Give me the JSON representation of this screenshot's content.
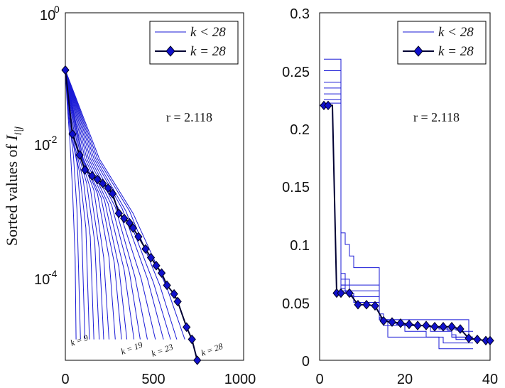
{
  "chart_data": [
    {
      "type": "line",
      "yscale": "log",
      "xlim": [
        0,
        1000
      ],
      "ylim_exponents": [
        -5,
        0
      ],
      "xticks": [
        "0",
        "500",
        "1000"
      ],
      "ytick_base": "10",
      "ytick_exponents": [
        "0",
        "-2",
        "-4"
      ],
      "ylabel": "Sorted values of ",
      "ylabel_math": "I",
      "ylabel_sub": "i|j",
      "annotation": "r = 2.118",
      "legend": {
        "thin": "k < 28",
        "main": "k = 28",
        "placement": "top-right"
      },
      "k_labels": [
        "k = 9",
        "k = 19",
        "k = 23",
        "k = 28"
      ],
      "thin_series": [
        {
          "k": 9,
          "end": 60,
          "x": [
            0,
            10,
            25,
            40,
            55,
            60
          ],
          "y": [
            0.15,
            0.05,
            0.015,
            0.003,
            0.0003,
            2e-05
          ]
        },
        {
          "k": 10,
          "end": 85,
          "x": [
            0,
            20,
            45,
            65,
            85
          ],
          "y": [
            0.15,
            0.03,
            0.009,
            0.0015,
            2e-05
          ]
        },
        {
          "k": 11,
          "end": 110,
          "x": [
            0,
            30,
            65,
            90,
            110
          ],
          "y": [
            0.15,
            0.02,
            0.007,
            0.001,
            2e-05
          ]
        },
        {
          "k": 12,
          "end": 135,
          "x": [
            0,
            40,
            80,
            115,
            135
          ],
          "y": [
            0.15,
            0.015,
            0.005,
            0.0008,
            2e-05
          ]
        },
        {
          "k": 13,
          "end": 160,
          "x": [
            0,
            50,
            100,
            140,
            160
          ],
          "y": [
            0.15,
            0.013,
            0.004,
            0.0006,
            2e-05
          ]
        },
        {
          "k": 14,
          "end": 190,
          "x": [
            0,
            60,
            120,
            165,
            190
          ],
          "y": [
            0.15,
            0.012,
            0.0035,
            0.0005,
            2e-05
          ]
        },
        {
          "k": 15,
          "end": 215,
          "x": [
            0,
            70,
            140,
            190,
            215
          ],
          "y": [
            0.15,
            0.011,
            0.003,
            0.0004,
            2e-05
          ]
        },
        {
          "k": 16,
          "end": 245,
          "x": [
            0,
            80,
            160,
            215,
            245
          ],
          "y": [
            0.15,
            0.01,
            0.0028,
            0.0003,
            2e-05
          ]
        },
        {
          "k": 17,
          "end": 280,
          "x": [
            0,
            90,
            180,
            245,
            280
          ],
          "y": [
            0.15,
            0.009,
            0.0025,
            0.0003,
            2e-05
          ]
        },
        {
          "k": 18,
          "end": 315,
          "x": [
            0,
            100,
            200,
            275,
            315
          ],
          "y": [
            0.15,
            0.008,
            0.0022,
            0.00025,
            2e-05
          ]
        },
        {
          "k": 19,
          "end": 345,
          "x": [
            0,
            110,
            220,
            300,
            345
          ],
          "y": [
            0.15,
            0.008,
            0.002,
            0.00022,
            2e-05
          ]
        },
        {
          "k": 20,
          "end": 385,
          "x": [
            0,
            120,
            240,
            330,
            385
          ],
          "y": [
            0.15,
            0.008,
            0.0018,
            0.0002,
            2e-05
          ]
        },
        {
          "k": 21,
          "end": 420,
          "x": [
            0,
            130,
            260,
            360,
            420
          ],
          "y": [
            0.15,
            0.008,
            0.0017,
            0.00018,
            2e-05
          ]
        },
        {
          "k": 22,
          "end": 460,
          "x": [
            0,
            140,
            280,
            390,
            460
          ],
          "y": [
            0.15,
            0.008,
            0.0016,
            0.00016,
            2e-05
          ]
        },
        {
          "k": 23,
          "end": 505,
          "x": [
            0,
            150,
            300,
            425,
            505
          ],
          "y": [
            0.15,
            0.008,
            0.0015,
            0.00015,
            2e-05
          ]
        },
        {
          "k": 24,
          "end": 550,
          "x": [
            0,
            160,
            320,
            460,
            550
          ],
          "y": [
            0.15,
            0.008,
            0.0015,
            0.00015,
            2e-05
          ]
        },
        {
          "k": 25,
          "end": 590,
          "x": [
            0,
            170,
            340,
            495,
            590
          ],
          "y": [
            0.15,
            0.008,
            0.0014,
            0.00013,
            2e-05
          ]
        },
        {
          "k": 26,
          "end": 625,
          "x": [
            0,
            180,
            360,
            530,
            625
          ],
          "y": [
            0.15,
            0.008,
            0.0014,
            0.00012,
            2e-05
          ]
        },
        {
          "k": 27,
          "end": 670,
          "x": [
            0,
            190,
            380,
            570,
            670
          ],
          "y": [
            0.15,
            0.008,
            0.0013,
            0.00011,
            2e-05
          ]
        }
      ],
      "main_series": {
        "name": "k = 28",
        "x": [
          0,
          40,
          80,
          110,
          150,
          180,
          210,
          240,
          265,
          300,
          330,
          360,
          380,
          410,
          450,
          480,
          510,
          540,
          570,
          610,
          630,
          680,
          710,
          740
        ],
        "y": [
          0.15,
          0.018,
          0.009,
          0.0055,
          0.0045,
          0.004,
          0.0035,
          0.003,
          0.0025,
          0.0013,
          0.0011,
          0.00095,
          0.0008,
          0.0006,
          0.0004,
          0.0003,
          0.00023,
          0.00018,
          0.00012,
          9e-05,
          7e-05,
          3e-05,
          2e-05,
          1e-05
        ]
      }
    },
    {
      "type": "line",
      "xlim": [
        0,
        40
      ],
      "ylim": [
        0,
        0.3
      ],
      "xticks": [
        "0",
        "20",
        "40"
      ],
      "yticks": [
        "0",
        "0.05",
        "0.1",
        "0.15",
        "0.2",
        "0.25",
        "0.3"
      ],
      "annotation": "r = 2.118",
      "legend": {
        "thin": "k < 28",
        "main": "k = 28",
        "placement": "top-right"
      },
      "thin_series": [
        {
          "k": 9,
          "y": [
            0.26,
            0.26,
            0.26,
            0.26,
            0.065,
            0.06,
            0.055,
            0.05,
            0.05,
            0.05,
            0.05,
            0.05,
            0.05,
            0.035,
            0.035,
            0.035,
            0.035,
            0.035,
            0.035,
            0.035,
            0.035,
            0.035,
            0.035,
            0.035,
            0.035,
            0.035,
            0.035,
            0.035,
            0.035,
            0.035,
            0.035,
            0.035,
            0.035,
            0.035,
            0.02
          ]
        },
        {
          "k": 12,
          "y": [
            0.25,
            0.25,
            0.25,
            0.25,
            0.11,
            0.1,
            0.09,
            0.08,
            0.08,
            0.08,
            0.08,
            0.08,
            0.08,
            0.035,
            0.035,
            0.02,
            0.02,
            0.02,
            0.02,
            0.02,
            0.02,
            0.02,
            0.02,
            0.02,
            0.02,
            0.02,
            0.02,
            0.01,
            0.01,
            0.01,
            0.01,
            0.01,
            0.01,
            0.01,
            0.01
          ]
        },
        {
          "k": 15,
          "y": [
            0.24,
            0.24,
            0.24,
            0.24,
            0.075,
            0.07,
            0.065,
            0.065,
            0.065,
            0.065,
            0.065,
            0.065,
            0.065,
            0.035,
            0.03,
            0.03,
            0.03,
            0.03,
            0.03,
            0.025,
            0.025,
            0.025,
            0.025,
            0.025,
            0.02,
            0.02,
            0.02,
            0.02,
            0.015,
            0.015,
            0.015,
            0.015,
            0.015,
            0.015,
            0.015
          ]
        },
        {
          "k": 18,
          "y": [
            0.235,
            0.235,
            0.235,
            0.235,
            0.07,
            0.065,
            0.06,
            0.06,
            0.06,
            0.06,
            0.06,
            0.06,
            0.06,
            0.04,
            0.035,
            0.035,
            0.035,
            0.035,
            0.03,
            0.03,
            0.03,
            0.03,
            0.03,
            0.03,
            0.03,
            0.025,
            0.025,
            0.025,
            0.025,
            0.025,
            0.02,
            0.02,
            0.02,
            0.02,
            0.02
          ]
        },
        {
          "k": 21,
          "y": [
            0.23,
            0.23,
            0.23,
            0.23,
            0.065,
            0.06,
            0.058,
            0.055,
            0.055,
            0.055,
            0.055,
            0.055,
            0.055,
            0.037,
            0.034,
            0.033,
            0.033,
            0.032,
            0.032,
            0.031,
            0.031,
            0.03,
            0.03,
            0.03,
            0.029,
            0.029,
            0.029,
            0.028,
            0.028,
            0.027,
            0.027,
            0.026,
            0.025,
            0.025,
            0.025
          ]
        },
        {
          "k": 24,
          "y": [
            0.225,
            0.225,
            0.225,
            0.225,
            0.062,
            0.06,
            0.056,
            0.05,
            0.05,
            0.05,
            0.05,
            0.05,
            0.05,
            0.036,
            0.034,
            0.033,
            0.032,
            0.031,
            0.031,
            0.03,
            0.03,
            0.03,
            0.03,
            0.03,
            0.029,
            0.029,
            0.028,
            0.027,
            0.027,
            0.026,
            0.022,
            0.02,
            0.02,
            0.02,
            0.02
          ]
        },
        {
          "k": 27,
          "y": [
            0.222,
            0.222,
            0.222,
            0.222,
            0.06,
            0.059,
            0.058,
            0.05,
            0.05,
            0.05,
            0.05,
            0.05,
            0.05,
            0.035,
            0.034,
            0.033,
            0.032,
            0.031,
            0.03,
            0.03,
            0.03,
            0.03,
            0.03,
            0.03,
            0.029,
            0.029,
            0.028,
            0.028,
            0.027,
            0.026,
            0.02,
            0.018,
            0.018,
            0.018,
            0.018
          ]
        }
      ],
      "main_series": {
        "name": "k = 28",
        "x": [
          0,
          1,
          2,
          3,
          4,
          5,
          7,
          9,
          11,
          13,
          15,
          17,
          19,
          21,
          23,
          25,
          27,
          29,
          31,
          33,
          35,
          37,
          39,
          40
        ],
        "y": [
          0.22,
          0.22,
          0.22,
          0.22,
          0.058,
          0.058,
          0.058,
          0.048,
          0.048,
          0.047,
          0.034,
          0.033,
          0.032,
          0.031,
          0.03,
          0.03,
          0.029,
          0.029,
          0.029,
          0.027,
          0.019,
          0.018,
          0.017,
          0.017
        ]
      }
    }
  ]
}
